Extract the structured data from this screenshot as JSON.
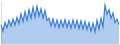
{
  "chart_data": {
    "type": "line",
    "categories": [
      null,
      null,
      null,
      null,
      null,
      null,
      null,
      null,
      null,
      null,
      null,
      null,
      null,
      null,
      null,
      null,
      null,
      null,
      null,
      null,
      null,
      null,
      null,
      null,
      null,
      null,
      null,
      null,
      null,
      null,
      null,
      null,
      null,
      null,
      null,
      null,
      null,
      null,
      null,
      null,
      null,
      null,
      null,
      null,
      null,
      null,
      null,
      null,
      null,
      null,
      null,
      null,
      null,
      null,
      null,
      null,
      null,
      null,
      null,
      null
    ],
    "values": [
      45,
      30,
      50,
      38,
      55,
      42,
      58,
      44,
      62,
      48,
      70,
      52,
      75,
      55,
      80,
      60,
      85,
      62,
      88,
      65,
      82,
      60,
      78,
      55,
      60,
      42,
      58,
      40,
      56,
      38,
      55,
      40,
      57,
      39,
      54,
      37,
      56,
      38,
      55,
      36,
      54,
      35,
      52,
      34,
      50,
      30,
      48,
      28,
      55,
      35,
      60,
      40,
      90,
      70,
      80,
      60,
      72,
      50,
      58,
      45
    ],
    "color": "#3a7fd5",
    "ylim": [
      0,
      100
    ],
    "grid": false,
    "tick_labels": false
  }
}
